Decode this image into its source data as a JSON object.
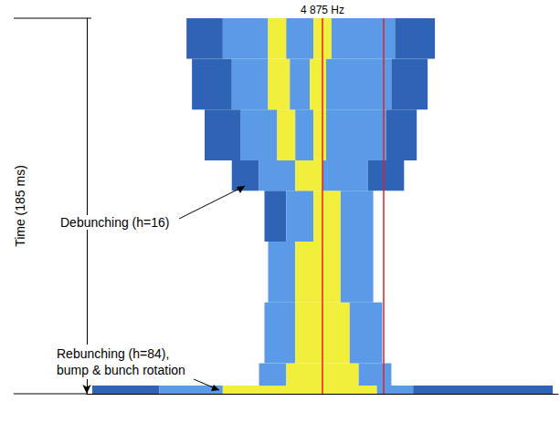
{
  "chart_data": {
    "type": "spectrogram",
    "y_label": "Time (185 ms)",
    "xlim": [
      0,
      26
    ],
    "ylim": [
      0,
      185
    ],
    "tick_labels": false,
    "grid": false,
    "levels": [
      1,
      2,
      3
    ],
    "level_colors": [
      "#2f63b5",
      "#5a9ae6",
      "#f2ee3c"
    ],
    "bands": [
      {
        "t": [
          0,
          4
        ],
        "segments": [
          [
            0.3,
            4,
            1
          ],
          [
            4,
            7.5,
            2
          ],
          [
            7.5,
            16,
            3
          ],
          [
            16,
            18,
            2
          ],
          [
            18,
            25.7,
            1
          ]
        ]
      },
      {
        "t": [
          4,
          15
        ],
        "segments": [
          [
            9.5,
            11,
            2
          ],
          [
            11,
            15,
            3
          ],
          [
            15,
            16.8,
            2
          ]
        ]
      },
      {
        "t": [
          15,
          45
        ],
        "segments": [
          [
            9.8,
            11.5,
            2
          ],
          [
            11.5,
            14.5,
            3
          ],
          [
            14.5,
            16.3,
            2
          ]
        ]
      },
      {
        "t": [
          45,
          75
        ],
        "segments": [
          [
            10,
            11.5,
            2
          ],
          [
            11.5,
            14,
            3
          ],
          [
            14,
            15.8,
            2
          ]
        ]
      },
      {
        "t": [
          75,
          100
        ],
        "segments": [
          [
            9.8,
            11,
            1
          ],
          [
            11,
            12.5,
            2
          ],
          [
            12.5,
            14,
            3
          ],
          [
            14,
            15.8,
            2
          ]
        ]
      },
      {
        "t": [
          100,
          115
        ],
        "segments": [
          [
            8,
            9.5,
            1
          ],
          [
            9.5,
            11.5,
            2
          ],
          [
            11.5,
            13,
            3
          ],
          [
            13,
            15.5,
            2
          ],
          [
            15.5,
            17.5,
            1
          ]
        ]
      },
      {
        "t": [
          115,
          140
        ],
        "segments": [
          [
            6.5,
            8.5,
            1
          ],
          [
            8.5,
            10.5,
            2
          ],
          [
            10.5,
            11.5,
            3
          ],
          [
            11.5,
            12.5,
            2
          ],
          [
            12.5,
            13.2,
            3
          ],
          [
            13.2,
            16.5,
            2
          ],
          [
            16.5,
            18.2,
            1
          ]
        ]
      },
      {
        "t": [
          140,
          165
        ],
        "segments": [
          [
            5.8,
            8,
            1
          ],
          [
            8,
            10,
            2
          ],
          [
            10,
            11.2,
            3
          ],
          [
            11.2,
            12.3,
            2
          ],
          [
            12.3,
            13.2,
            3
          ],
          [
            13.2,
            16.8,
            2
          ],
          [
            16.8,
            18.8,
            1
          ]
        ]
      },
      {
        "t": [
          165,
          185
        ],
        "segments": [
          [
            5.5,
            7.5,
            1
          ],
          [
            7.5,
            10,
            2
          ],
          [
            10,
            11,
            3
          ],
          [
            11,
            12.5,
            2
          ],
          [
            12.5,
            13.5,
            3
          ],
          [
            13.5,
            17,
            2
          ],
          [
            17,
            19.2,
            1
          ]
        ]
      }
    ],
    "marker_lines": {
      "x": [
        13.0,
        16.35
      ],
      "color": "#e0202a",
      "label": "4 875 Hz"
    },
    "annotations": [
      "Debunching (h=16)",
      "Rebunching (h=84),\nbump & bunch rotation"
    ]
  }
}
